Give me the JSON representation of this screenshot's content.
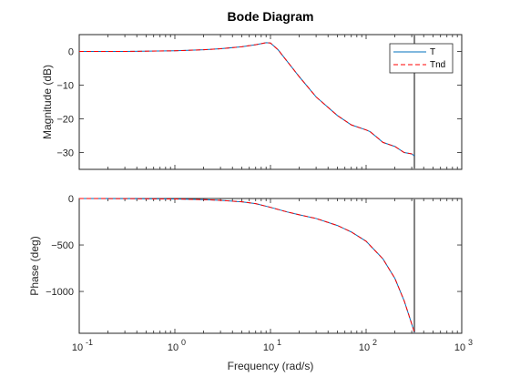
{
  "chart_data": [
    {
      "type": "line",
      "title": "Bode Diagram",
      "ylabel": "Magnitude (dB)",
      "xscale": "log",
      "xlim": [
        0.1,
        1000
      ],
      "ylim": [
        -35,
        5
      ],
      "yticks": [
        0,
        -10,
        -20,
        -30
      ],
      "grid": false,
      "legend": {
        "placement": "top-right",
        "entries": [
          "T",
          "Tnd"
        ]
      },
      "series": [
        {
          "name": "T",
          "color": "#0072BD",
          "style": "solid",
          "x": [
            0.1,
            0.3,
            1,
            2,
            3,
            5,
            7,
            9,
            10,
            12,
            15,
            20,
            30,
            50,
            70,
            100,
            110,
            130,
            150,
            200,
            250,
            300,
            320
          ],
          "y": [
            0,
            0,
            0.2,
            0.5,
            0.8,
            1.4,
            2.0,
            2.6,
            2.5,
            0.5,
            -3.0,
            -7.5,
            -13.5,
            -19.0,
            -21.8,
            -23.3,
            -23.8,
            -25.5,
            -27.0,
            -28.2,
            -30.0,
            -30.4,
            -31.0
          ]
        },
        {
          "name": "Tnd",
          "color": "#FF0000",
          "style": "dashed",
          "x": [
            0.1,
            0.3,
            1,
            2,
            3,
            5,
            7,
            9,
            10,
            12,
            15,
            20,
            30,
            50,
            70,
            100,
            110,
            130,
            150,
            200,
            250,
            300,
            320
          ],
          "y": [
            0,
            0,
            0.2,
            0.5,
            0.8,
            1.4,
            2.0,
            2.6,
            2.5,
            0.5,
            -3.0,
            -7.5,
            -13.5,
            -19.0,
            -21.8,
            -23.3,
            -23.8,
            -25.5,
            -27.0,
            -28.2,
            -30.0,
            -30.4,
            -31.0
          ]
        }
      ],
      "vline": {
        "x": 320,
        "color": "#808080"
      }
    },
    {
      "type": "line",
      "xlabel": "Frequency (rad/s)",
      "ylabel": "Phase (deg)",
      "xscale": "log",
      "xlim": [
        0.1,
        1000
      ],
      "ylim": [
        -1450,
        0
      ],
      "xticks": [
        {
          "value": 0.1,
          "base": "10",
          "exp": "-1"
        },
        {
          "value": 1,
          "base": "10",
          "exp": "0"
        },
        {
          "value": 10,
          "base": "10",
          "exp": "1"
        },
        {
          "value": 100,
          "base": "10",
          "exp": "2"
        },
        {
          "value": 1000,
          "base": "10",
          "exp": "3"
        }
      ],
      "yticks": [
        0,
        -500,
        -1000
      ],
      "grid": false,
      "series": [
        {
          "name": "T",
          "color": "#0072BD",
          "style": "solid",
          "x": [
            0.1,
            0.3,
            1,
            2,
            3,
            5,
            7,
            10,
            15,
            20,
            30,
            50,
            70,
            100,
            150,
            200,
            250,
            300,
            320
          ],
          "y": [
            0,
            -1,
            -5,
            -12,
            -20,
            -35,
            -55,
            -95,
            -145,
            -175,
            -215,
            -290,
            -360,
            -460,
            -650,
            -860,
            -1100,
            -1350,
            -1440
          ]
        },
        {
          "name": "Tnd",
          "color": "#FF0000",
          "style": "dashed",
          "x": [
            0.1,
            0.3,
            1,
            2,
            3,
            5,
            7,
            10,
            15,
            20,
            30,
            50,
            70,
            100,
            150,
            200,
            250,
            300,
            320
          ],
          "y": [
            0,
            -1,
            -5,
            -12,
            -20,
            -35,
            -55,
            -95,
            -145,
            -175,
            -215,
            -290,
            -360,
            -460,
            -650,
            -860,
            -1100,
            -1350,
            -1440
          ]
        }
      ],
      "vline": {
        "x": 320,
        "color": "#808080"
      }
    }
  ]
}
